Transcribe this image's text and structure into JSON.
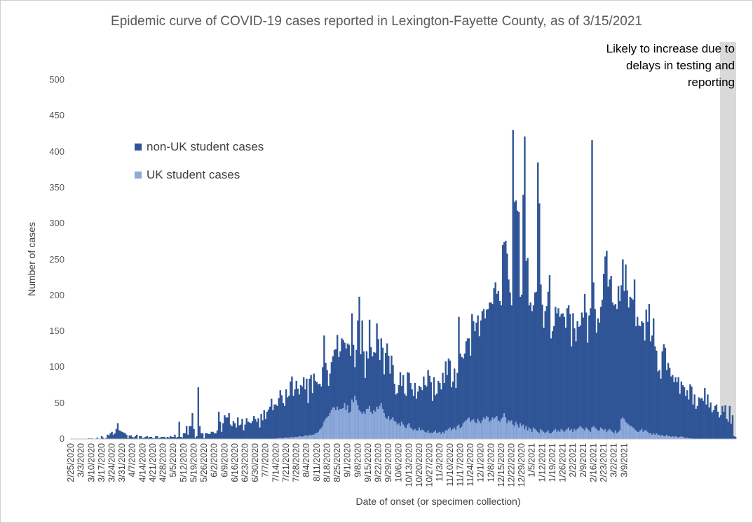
{
  "chart_data": {
    "type": "bar",
    "stacked": true,
    "title": "Epidemic curve of COVID-19 cases reported in Lexington-Fayette County, as of 3/15/2021",
    "xlabel": "Date of onset (or specimen collection)",
    "ylabel": "Number of cases",
    "ylim": [
      0,
      500
    ],
    "yticks": [
      "0",
      "50",
      "100",
      "150",
      "200",
      "250",
      "300",
      "350",
      "400",
      "450",
      "500"
    ],
    "x_start": "2/25/2020",
    "x_end": "3/14/2021",
    "xtick_labels": [
      "2/25/2020",
      "3/3/2020",
      "3/10/2020",
      "3/17/2020",
      "3/24/2020",
      "3/31/2020",
      "4/7/2020",
      "4/14/2020",
      "4/21/2020",
      "4/28/2020",
      "5/5/2020",
      "5/12/2020",
      "5/19/2020",
      "5/26/2020",
      "6/2/2020",
      "6/9/2020",
      "6/16/2020",
      "6/23/2020",
      "6/30/2020",
      "7/7/2020",
      "7/14/2020",
      "7/21/2020",
      "7/28/2020",
      "8/4/2020",
      "8/11/2020",
      "8/18/2020",
      "8/25/2020",
      "9/1/2020",
      "9/8/2020",
      "9/15/2020",
      "9/22/2020",
      "9/29/2020",
      "10/6/2020",
      "10/13/2020",
      "10/20/2020",
      "10/27/2020",
      "11/3/2020",
      "11/10/2020",
      "11/17/2020",
      "11/24/2020",
      "12/1/2020",
      "12/8/2020",
      "12/15/2020",
      "12/22/2020",
      "12/29/2020",
      "1/5/2021",
      "1/12/2021",
      "1/19/2021",
      "1/26/2021",
      "2/2/2021",
      "2/9/2021",
      "2/16/2021",
      "2/23/2021",
      "3/2/2021",
      "3/9/2021"
    ],
    "grid": false,
    "legend_position": "upper-left",
    "colors": {
      "non_uk": "#2f5597",
      "uk": "#8eaadb",
      "shade": "#d9d9d9"
    },
    "series": [
      {
        "name": "non-UK student cases",
        "values": [
          0,
          0,
          0,
          0,
          0,
          0,
          0,
          0,
          0,
          0,
          0,
          0,
          1,
          0,
          1,
          0,
          0,
          0,
          2,
          0,
          0,
          4,
          2,
          0,
          1,
          6,
          5,
          8,
          10,
          6,
          8,
          14,
          22,
          12,
          11,
          10,
          9,
          8,
          6,
          1,
          5,
          5,
          3,
          2,
          4,
          6,
          0,
          4,
          4,
          1,
          2,
          3,
          4,
          2,
          3,
          3,
          1,
          1,
          4,
          4,
          1,
          2,
          3,
          3,
          3,
          1,
          3,
          2,
          4,
          3,
          3,
          6,
          2,
          3,
          24,
          3,
          2,
          8,
          8,
          18,
          6,
          18,
          18,
          36,
          14,
          2,
          4,
          72,
          18,
          8,
          8,
          1,
          8,
          8,
          7,
          7,
          10,
          10,
          8,
          8,
          12,
          38,
          24,
          10,
          22,
          33,
          30,
          30,
          36,
          20,
          18,
          25,
          22,
          16,
          30,
          19,
          20,
          28,
          12,
          20,
          29,
          24,
          23,
          22,
          25,
          32,
          28,
          24,
          29,
          16,
          35,
          26,
          40,
          28,
          38,
          41,
          45,
          56,
          40,
          48,
          48,
          45,
          56,
          66,
          60,
          49,
          44,
          67,
          56,
          58,
          78,
          84,
          58,
          66,
          78,
          67,
          58,
          71,
          70,
          82,
          64,
          79,
          46,
          78,
          84,
          58,
          85,
          73,
          71,
          66,
          64,
          58,
          82,
          120,
          78,
          66,
          42,
          55,
          67,
          71,
          80,
          85,
          100,
          74,
          80,
          98,
          95,
          84,
          86,
          86,
          95,
          78,
          120,
          80,
          40,
          70,
          118,
          158,
          80,
          130,
          84,
          50,
          80,
          70,
          120,
          90,
          80,
          81,
          82,
          116,
          97,
          64,
          90,
          85,
          54,
          90,
          105,
          84,
          65,
          88,
          73,
          52,
          38,
          44,
          53,
          75,
          50,
          69,
          46,
          45,
          73,
          70,
          62,
          55,
          48,
          64,
          44,
          54,
          58,
          60,
          55,
          75,
          65,
          64,
          84,
          80,
          70,
          45,
          76,
          49,
          55,
          72,
          68,
          62,
          82,
          70,
          96,
          77,
          98,
          93,
          60,
          66,
          82,
          58,
          74,
          150,
          104,
          97,
          90,
          95,
          110,
          112,
          110,
          92,
          148,
          136,
          126,
          140,
          144,
          118,
          143,
          152,
          151,
          140,
          148,
          151,
          166,
          164,
          158,
          182,
          188,
          170,
          180,
          168,
          158,
          240,
          238,
          246,
          236,
          196,
          180,
          160,
          410,
          312,
          308,
          298,
          300,
          176,
          183,
          320,
          407,
          230,
          240,
          170,
          176,
          168,
          170,
          190,
          193,
          375,
          320,
          201,
          175,
          145,
          170,
          175,
          193,
          220,
          132,
          140,
          145,
          170,
          165,
          170,
          160,
          160,
          163,
          160,
          143,
          168,
          170,
          162,
          115,
          165,
          140,
          124,
          150,
          140,
          140,
          160,
          155,
          190,
          160,
          120,
          160,
          172,
          400,
          200,
          165,
          134,
          156,
          150,
          168,
          180,
          218,
          240,
          252,
          200,
          208,
          215,
          180,
          178,
          176,
          173,
          203,
          180,
          186,
          220,
          178,
          219,
          185,
          163,
          180,
          178,
          178,
          208,
          145,
          160,
          148,
          145,
          150,
          152,
          125,
          168,
          153,
          180,
          128,
          138,
          160,
          123,
          115,
          88,
          90,
          80,
          116,
          128,
          123,
          90,
          102,
          95,
          84,
          85,
          76,
          82,
          76,
          84,
          60,
          76,
          72,
          70,
          59,
          66,
          54,
          75,
          72,
          48,
          62,
          42,
          46,
          58,
          56,
          57,
          53,
          71,
          48,
          62,
          44,
          51,
          37,
          40,
          46,
          48,
          38,
          30,
          33,
          46,
          38,
          47,
          28,
          24,
          46,
          21,
          33,
          4,
          3
        ],
        "note": "bar heights read approximately from chart; one bar per day"
      },
      {
        "name": "UK student cases",
        "values": [
          0,
          0,
          0,
          0,
          0,
          0,
          0,
          0,
          0,
          0,
          0,
          0,
          0,
          0,
          0,
          0,
          0,
          0,
          0,
          0,
          0,
          0,
          0,
          0,
          0,
          0,
          0,
          0,
          0,
          0,
          0,
          0,
          0,
          0,
          0,
          0,
          0,
          0,
          0,
          0,
          0,
          0,
          0,
          0,
          0,
          0,
          0,
          0,
          0,
          0,
          0,
          0,
          0,
          0,
          0,
          0,
          0,
          0,
          0,
          0,
          0,
          0,
          0,
          0,
          0,
          0,
          0,
          0,
          0,
          0,
          0,
          0,
          0,
          0,
          0,
          0,
          0,
          0,
          0,
          0,
          0,
          0,
          0,
          0,
          0,
          0,
          0,
          0,
          0,
          0,
          0,
          0,
          0,
          0,
          0,
          0,
          0,
          0,
          0,
          0,
          0,
          0,
          0,
          0,
          0,
          0,
          0,
          0,
          0,
          0,
          0,
          0,
          0,
          0,
          0,
          0,
          0,
          0,
          0,
          0,
          0,
          0,
          0,
          0,
          0,
          0,
          0,
          0,
          0,
          0,
          0,
          0,
          0,
          0,
          0,
          0,
          0,
          0,
          0,
          0,
          0,
          1,
          1,
          2,
          1,
          1,
          2,
          2,
          2,
          2,
          2,
          3,
          2,
          3,
          3,
          3,
          4,
          4,
          3,
          4,
          5,
          5,
          4,
          6,
          5,
          6,
          6,
          8,
          8,
          10,
          13,
          15,
          18,
          24,
          28,
          30,
          32,
          36,
          40,
          44,
          44,
          40,
          45,
          40,
          42,
          42,
          43,
          50,
          40,
          47,
          36,
          38,
          55,
          51,
          60,
          54,
          47,
          40,
          38,
          35,
          38,
          35,
          42,
          42,
          46,
          38,
          35,
          40,
          38,
          45,
          42,
          46,
          50,
          42,
          36,
          30,
          28,
          32,
          26,
          28,
          30,
          25,
          24,
          20,
          22,
          18,
          24,
          20,
          17,
          15,
          20,
          22,
          16,
          14,
          12,
          14,
          12,
          12,
          16,
          12,
          13,
          12,
          10,
          9,
          12,
          8,
          9,
          8,
          10,
          12,
          8,
          9,
          10,
          7,
          10,
          8,
          12,
          12,
          14,
          16,
          12,
          14,
          16,
          13,
          18,
          20,
          15,
          17,
          22,
          24,
          26,
          28,
          30,
          24,
          26,
          28,
          24,
          22,
          28,
          25,
          22,
          26,
          30,
          28,
          32,
          30,
          24,
          26,
          30,
          28,
          30,
          32,
          26,
          24,
          28,
          30,
          36,
          30,
          22,
          26,
          24,
          26,
          20,
          18,
          24,
          20,
          16,
          22,
          18,
          20,
          14,
          18,
          12,
          16,
          14,
          10,
          16,
          14,
          12,
          10,
          8,
          14,
          12,
          10,
          8,
          10,
          12,
          8,
          8,
          10,
          12,
          14,
          10,
          12,
          10,
          14,
          12,
          10,
          12,
          14,
          16,
          12,
          14,
          10,
          14,
          12,
          14,
          16,
          18,
          16,
          14,
          12,
          16,
          14,
          12,
          10,
          16,
          18,
          16,
          14,
          12,
          12,
          16,
          14,
          12,
          14,
          10,
          12,
          14,
          12,
          10,
          8,
          12,
          8,
          10,
          12,
          28,
          30,
          28,
          24,
          22,
          20,
          18,
          18,
          16,
          14,
          12,
          10,
          10,
          12,
          14,
          10,
          12,
          12,
          10,
          8,
          8,
          6,
          8,
          6,
          8,
          6,
          6,
          4,
          6,
          4,
          4,
          6,
          4,
          4,
          3,
          4,
          3,
          4,
          3,
          2,
          3,
          4,
          3,
          2,
          1,
          2,
          1,
          1,
          1,
          0,
          0
        ]
      }
    ]
  },
  "legend": {
    "non_uk_label": "non-UK student cases",
    "uk_label": "UK student cases"
  },
  "annotation": {
    "line1": "Likely to increase due to",
    "line2": "delays in testing and",
    "line3": "reporting"
  }
}
